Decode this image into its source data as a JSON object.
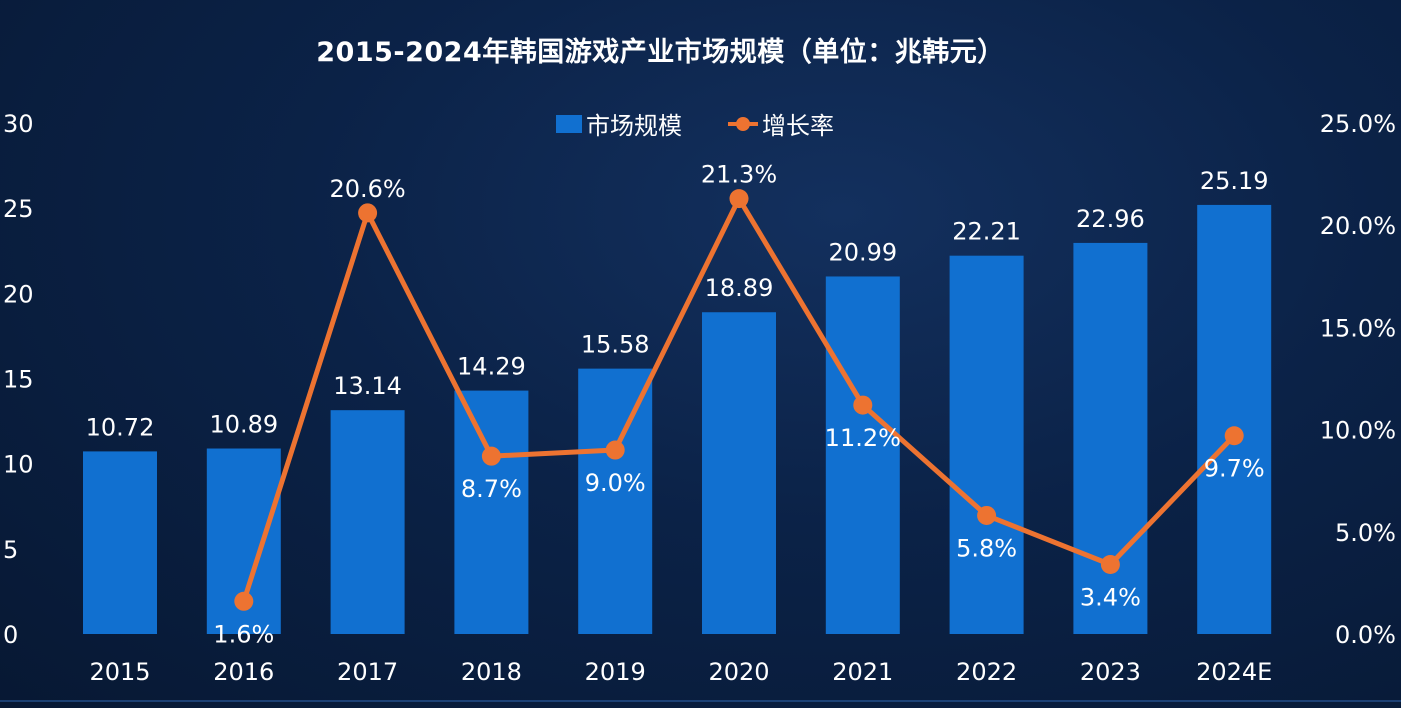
{
  "chart_data": {
    "type": "bar",
    "title": "2015-2024年韩国游戏产业市场规模（单位：兆韩元）",
    "categories": [
      "2015",
      "2016",
      "2017",
      "2018",
      "2019",
      "2020",
      "2021",
      "2022",
      "2023",
      "2024E"
    ],
    "series": [
      {
        "name": "市场规模",
        "type": "bar",
        "axis": "left",
        "values": [
          10.72,
          10.89,
          13.14,
          14.29,
          15.58,
          18.89,
          20.99,
          22.21,
          22.96,
          25.19
        ],
        "labels": [
          "10.72",
          "10.89",
          "13.14",
          "14.29",
          "15.58",
          "18.89",
          "20.99",
          "22.21",
          "22.96",
          "25.19"
        ]
      },
      {
        "name": "增长率",
        "type": "line",
        "axis": "right",
        "values": [
          null,
          1.6,
          20.6,
          8.7,
          9.0,
          21.3,
          11.2,
          5.8,
          3.4,
          9.7
        ],
        "labels": [
          "",
          "1.6%",
          "20.6%",
          "8.7%",
          "9.0%",
          "21.3%",
          "11.2%",
          "5.8%",
          "3.4%",
          "9.7%"
        ]
      }
    ],
    "y_left": {
      "min": 0,
      "max": 30,
      "ticks": [
        "0",
        "5",
        "10",
        "15",
        "20",
        "25",
        "30"
      ]
    },
    "y_right": {
      "min": 0,
      "max": 25,
      "ticks": [
        "0.0%",
        "5.0%",
        "10.0%",
        "15.0%",
        "20.0%",
        "25.0%"
      ]
    },
    "legend_position": "top-center",
    "grid": false,
    "colors": {
      "bar": "#1170d0",
      "line": "#ed7331",
      "background": "#0b2247"
    }
  }
}
